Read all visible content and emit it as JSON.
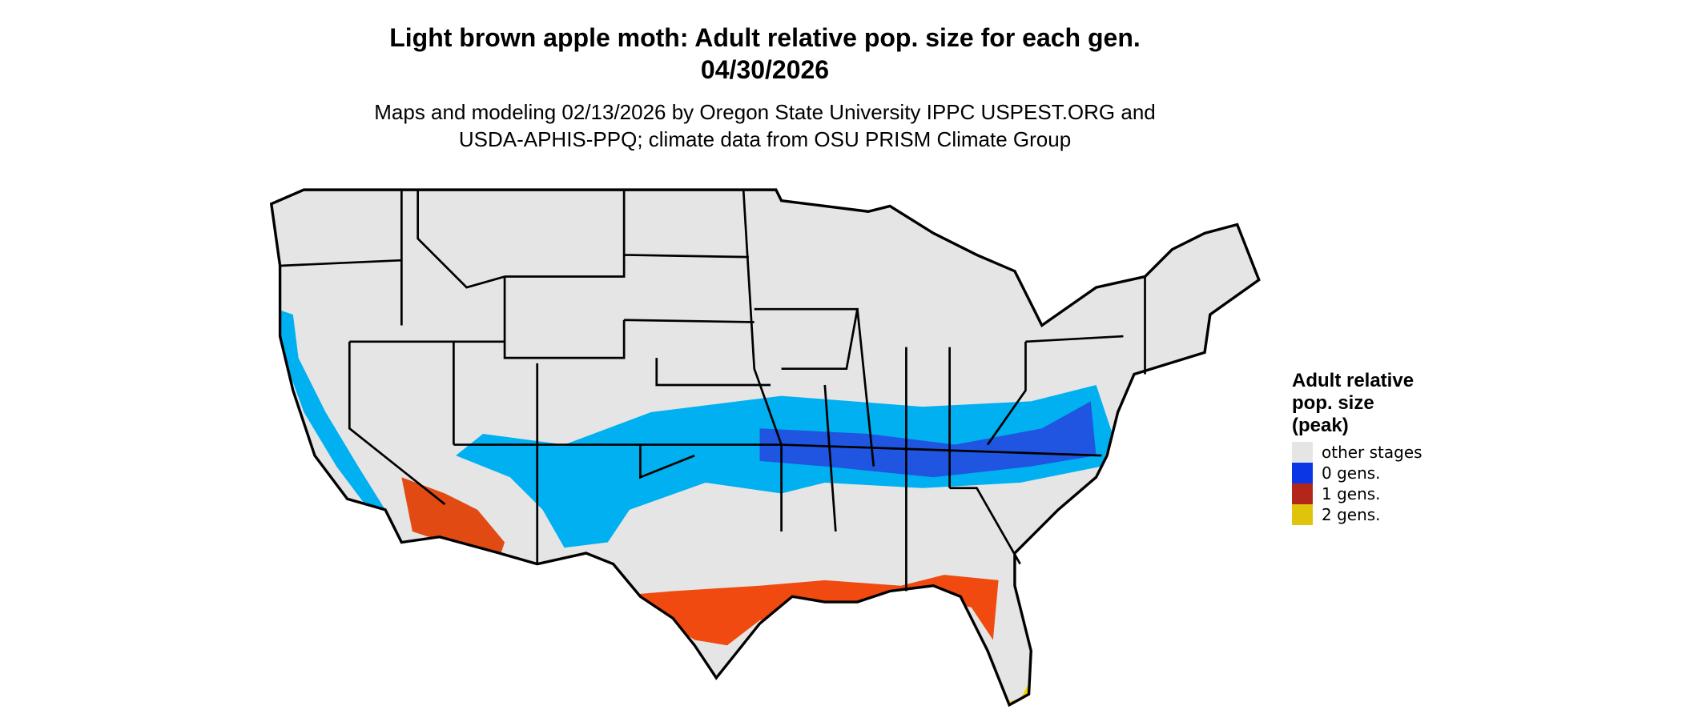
{
  "map": {
    "title": [
      "Light brown apple moth: Adult relative pop. size for each gen.",
      "04/30/2026"
    ],
    "subtitle": [
      "Maps and modeling 02/13/2026 by Oregon State University IPPC USPEST.ORG and",
      "USDA-APHIS-PPQ; climate data from OSU PRISM Climate Group"
    ],
    "legend": {
      "title": [
        "Adult relative",
        "pop. size",
        "(peak)"
      ],
      "items": [
        {
          "label": "other stages",
          "color": "#e5e5e5"
        },
        {
          "label": "0 gens.",
          "color": "#0a36e6"
        },
        {
          "label": "1 gens.",
          "color": "#b3261a"
        },
        {
          "label": "2 gens.",
          "color": "#e0c40c"
        }
      ]
    }
  }
}
